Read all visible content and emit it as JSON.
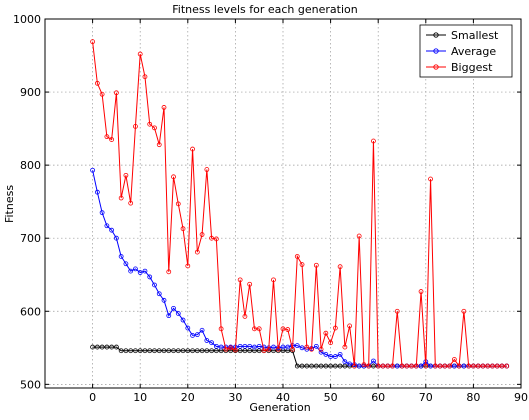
{
  "chart_data": {
    "type": "line",
    "title": "Fitness levels for each generation",
    "xlabel": "Generation",
    "ylabel": "Fitness",
    "xlim": [
      -10,
      90
    ],
    "ylim": [
      495,
      1000
    ],
    "xticks": [
      0,
      10,
      20,
      30,
      40,
      50,
      60,
      70,
      80,
      90
    ],
    "yticks": [
      500,
      600,
      700,
      800,
      900,
      1000
    ],
    "grid": true,
    "legend_position": "top-right",
    "x": [
      0,
      1,
      2,
      3,
      4,
      5,
      6,
      7,
      8,
      9,
      10,
      11,
      12,
      13,
      14,
      15,
      16,
      17,
      18,
      19,
      20,
      21,
      22,
      23,
      24,
      25,
      26,
      27,
      28,
      29,
      30,
      31,
      32,
      33,
      34,
      35,
      36,
      37,
      38,
      39,
      40,
      41,
      42,
      43,
      44,
      45,
      46,
      47,
      48,
      49,
      50,
      51,
      52,
      53,
      54,
      55,
      56,
      57,
      58,
      59,
      60,
      61,
      62,
      63,
      64,
      65,
      66,
      67,
      68,
      69,
      70,
      71,
      72,
      73,
      74,
      75,
      76,
      77,
      78,
      79,
      80,
      81,
      82,
      83,
      84,
      85,
      86,
      87
    ],
    "series": [
      {
        "name": "Smallest",
        "color": "#000000",
        "values": [
          551,
          551,
          551,
          551,
          551,
          551,
          546,
          546,
          546,
          546,
          546,
          546,
          546,
          546,
          546,
          546,
          546,
          546,
          546,
          546,
          546,
          546,
          546,
          546,
          546,
          546,
          546,
          546,
          546,
          546,
          546,
          546,
          546,
          546,
          546,
          546,
          546,
          546,
          546,
          546,
          546,
          546,
          546,
          525,
          525,
          525,
          525,
          525,
          525,
          525,
          525,
          525,
          525,
          525,
          525,
          525,
          525,
          525,
          525,
          525,
          525,
          525,
          525,
          525,
          525,
          525,
          525,
          525,
          525,
          525,
          525,
          525,
          525,
          525,
          525,
          525,
          525,
          525,
          525,
          525,
          525,
          525,
          525,
          525,
          525,
          525,
          525,
          525
        ]
      },
      {
        "name": "Average",
        "color": "#0000ff",
        "values": [
          793,
          763,
          735,
          717,
          711,
          700,
          675,
          665,
          655,
          658,
          653,
          655,
          647,
          636,
          624,
          615,
          594,
          604,
          597,
          588,
          577,
          567,
          568,
          574,
          560,
          557,
          552,
          551,
          551,
          551,
          551,
          552,
          552,
          552,
          551,
          552,
          551,
          550,
          551,
          550,
          551,
          551,
          553,
          553,
          550,
          548,
          549,
          552,
          544,
          541,
          538,
          538,
          541,
          531,
          528,
          527,
          525,
          525,
          525,
          532,
          525,
          525,
          525,
          525,
          525,
          525,
          525,
          525,
          525,
          525,
          531,
          525,
          525,
          525,
          525,
          525,
          525,
          525,
          525,
          525,
          525,
          525,
          525,
          525,
          525,
          525,
          525,
          525
        ]
      },
      {
        "name": "Biggest",
        "color": "#ff0000",
        "values": [
          969,
          912,
          897,
          839,
          835,
          899,
          755,
          786,
          748,
          853,
          952,
          921,
          856,
          851,
          828,
          879,
          654,
          784,
          747,
          713,
          662,
          822,
          681,
          705,
          794,
          700,
          699,
          576,
          548,
          550,
          547,
          643,
          593,
          637,
          576,
          576,
          546,
          548,
          643,
          548,
          576,
          575,
          548,
          675,
          664,
          551,
          548,
          663,
          548,
          570,
          557,
          577,
          661,
          551,
          580,
          525,
          703,
          527,
          525,
          833,
          525,
          525,
          525,
          525,
          600,
          525,
          525,
          525,
          525,
          627,
          525,
          781,
          525,
          525,
          525,
          525,
          534,
          525,
          600,
          525,
          525,
          525,
          525,
          525,
          525,
          525,
          525,
          525
        ]
      }
    ]
  }
}
